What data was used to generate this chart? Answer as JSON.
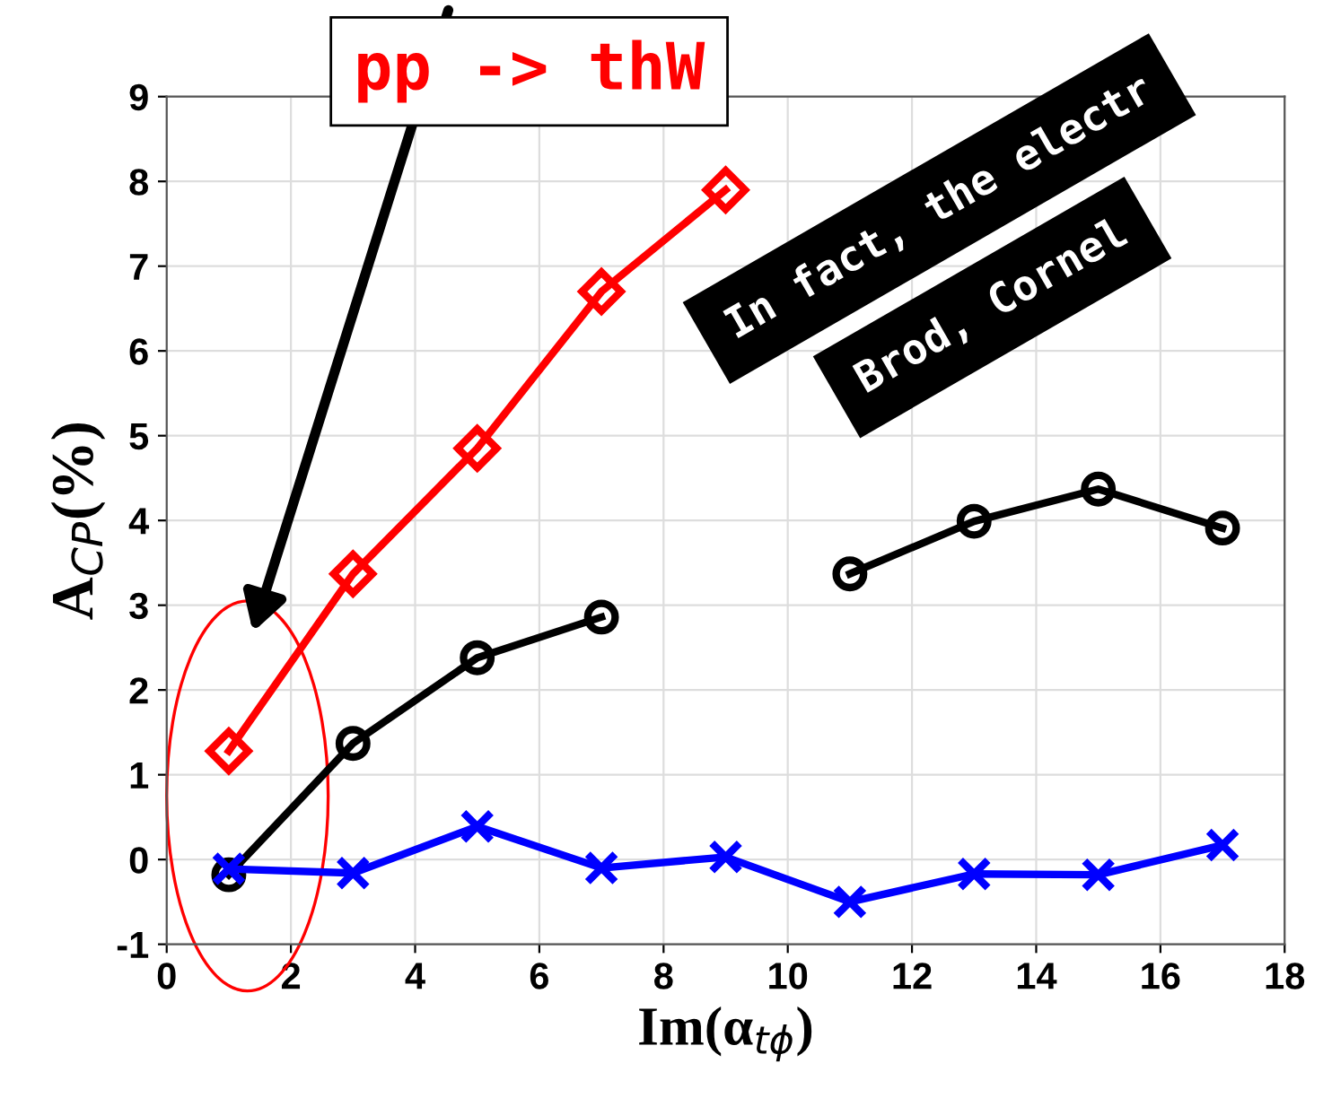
{
  "chart_data": {
    "type": "line",
    "xlabel": "Im(α$_{tϕ}$)",
    "ylabel": "A$_{CP}$(%)",
    "x": [
      1,
      3,
      5,
      7,
      9,
      11,
      13,
      15,
      17
    ],
    "series": [
      {
        "color": "#ff0000",
        "marker": "diamond",
        "values": [
          1.28,
          3.37,
          4.85,
          6.7,
          7.9,
          null,
          null,
          null,
          null
        ]
      },
      {
        "color": "#000000",
        "marker": "circle",
        "values": [
          -0.18,
          1.37,
          2.38,
          2.86,
          null,
          3.37,
          3.99,
          4.37,
          3.91
        ]
      },
      {
        "color": "#0000ff",
        "marker": "cross",
        "values": [
          -0.11,
          -0.16,
          0.39,
          -0.1,
          0.03,
          -0.5,
          -0.17,
          -0.18,
          0.17
        ]
      }
    ],
    "xlim": [
      0,
      18
    ],
    "xticks": [
      0,
      2,
      4,
      6,
      8,
      10,
      12,
      14,
      16,
      18
    ],
    "ylim": [
      -1,
      9
    ],
    "yticks": [
      -1,
      0,
      1,
      2,
      3,
      4,
      5,
      6,
      7,
      8,
      9
    ],
    "grid": true,
    "line_style": "solid",
    "annotations": [
      "pp -> thW",
      "In fact, the electr",
      "Brod, Cornel"
    ]
  }
}
